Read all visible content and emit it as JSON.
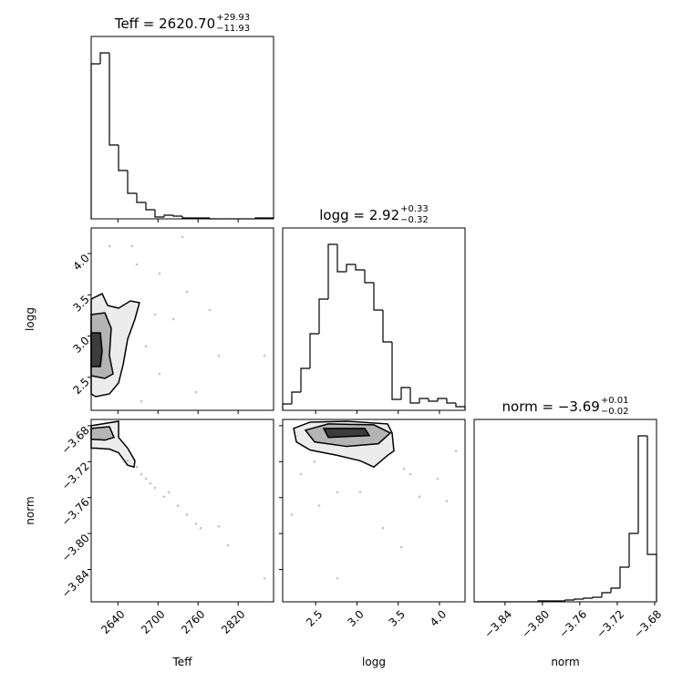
{
  "chart_data": [
    {
      "type": "histogram",
      "title": "Teff = 2620.70",
      "title_upper": "+29.93",
      "title_lower": "−11.93",
      "color": "#000000",
      "bins": [
        2600,
        2613.65,
        2627.3,
        2640.95,
        2654.6,
        2668.25,
        2681.9,
        2695.55,
        2709.2,
        2722.85,
        2736.5,
        2750.15,
        2763.8,
        2777.45,
        2791.1,
        2804.75,
        2818.4,
        2832.05,
        2845.7,
        2859.35,
        2873
      ],
      "counts": [
        170,
        182,
        81,
        53,
        28,
        18,
        10,
        2,
        4,
        3,
        1,
        1,
        1,
        0,
        0,
        0,
        0,
        0,
        1,
        1
      ],
      "xlim": [
        2600,
        2873
      ],
      "ylim": [
        0,
        200
      ]
    },
    {
      "type": "scatter",
      "color": "#999999",
      "ylabel": "logg",
      "x": [
        2627.3,
        2668.3,
        2702.4,
        2736.5,
        2722.9,
        2702.4,
        2675.1,
        2777.5,
        2791.1,
        2681.9,
        2757,
        2859.4,
        2661.4,
        2743.3,
        2695.6
      ],
      "y": [
        4.089,
        3.868,
        3.758,
        4.2,
        3.205,
        2.542,
        2.21,
        3.316,
        2.763,
        2.874,
        2.321,
        2.763,
        4.089,
        3.537,
        3.26
      ],
      "contours": [
        {
          "x": [
            2600,
            2616.4,
            2624.6,
            2641,
            2658.7,
            2672.3,
            2665.5,
            2654.6,
            2647.8,
            2641,
            2627.3,
            2606.8,
            2600
          ],
          "y": [
            3.448,
            3.514,
            3.371,
            3.338,
            3.426,
            3.404,
            3.205,
            2.962,
            2.653,
            2.432,
            2.299,
            2.266,
            2.299
          ]
        },
        {
          "x": [
            2600,
            2620.5,
            2630,
            2627.3,
            2632.8,
            2620.5,
            2600
          ],
          "y": [
            3.26,
            3.282,
            3.095,
            2.763,
            2.542,
            2.487,
            2.52
          ]
        },
        {
          "x": [
            2600,
            2613.65,
            2616.4,
            2613.65,
            2600
          ],
          "y": [
            3.039,
            3.039,
            2.818,
            2.63,
            2.63
          ]
        }
      ],
      "xlim": [
        2600,
        2873
      ],
      "ylim": [
        2.1,
        4.31
      ],
      "yticks": [
        2.5,
        {
          "value": 3,
          "label": "3.0"
        },
        3.5,
        {
          "value": 4,
          "label": "4.0"
        }
      ]
    },
    {
      "type": "histogram",
      "title": "logg = 2.92",
      "title_upper": "+0.33",
      "title_lower": "−0.32",
      "color": "#000000",
      "bins": [
        2.1,
        2.2105,
        2.321,
        2.4315,
        2.542,
        2.6525,
        2.763,
        2.8735,
        2.984,
        3.0945,
        3.205,
        3.3155,
        3.426,
        3.5365,
        3.647,
        3.7575,
        3.868,
        3.9785,
        4.089,
        4.1995,
        4.31
      ],
      "counts": [
        7,
        20,
        46,
        84,
        122,
        182,
        152,
        160,
        154,
        140,
        110,
        75,
        12,
        25,
        8,
        13,
        10,
        13,
        8,
        4
      ],
      "xlim": [
        2.1,
        4.31
      ],
      "ylim": [
        0,
        200
      ]
    },
    {
      "type": "scatter",
      "color": "#999999",
      "xlabel": "Teff",
      "ylabel": "norm",
      "x": [
        2668.3,
        2681.9,
        2695.6,
        2709.2,
        2729.7,
        2743.3,
        2757,
        2763.8,
        2791.1,
        2804.8,
        2859.4,
        2654.6,
        2675.1,
        2716,
        2688.7
      ],
      "y": [
        -3.726,
        -3.739,
        -3.749,
        -3.759,
        -3.769,
        -3.779,
        -3.789,
        -3.794,
        -3.792,
        -3.813,
        -3.85,
        -3.719,
        -3.734,
        -3.754,
        -3.744
      ],
      "contours": [
        {
          "x": [
            2600,
            2641,
            2641,
            2654.6,
            2665.5,
            2664.2,
            2654.6,
            2641,
            2627.3,
            2606.8,
            2600
          ],
          "y": [
            -3.68,
            -3.675,
            -3.693,
            -3.705,
            -3.719,
            -3.726,
            -3.724,
            -3.71,
            -3.706,
            -3.705,
            -3.705
          ]
        },
        {
          "x": [
            2600,
            2627.3,
            2634.1,
            2620.5,
            2600
          ],
          "y": [
            -3.683,
            -3.681,
            -3.693,
            -3.696,
            -3.695
          ]
        }
      ],
      "xlim": [
        2600,
        2873
      ],
      "ylim": [
        -3.876,
        -3.673
      ],
      "xticks": [
        2640,
        2700,
        2760,
        2820
      ],
      "yticks": [
        {
          "value": -3.84,
          "label": "−3.84"
        },
        {
          "value": -3.8,
          "label": "−3.80"
        },
        {
          "value": -3.76,
          "label": "−3.76"
        },
        {
          "value": -3.72,
          "label": "−3.72"
        },
        {
          "value": -3.68,
          "label": "−3.68"
        }
      ]
    },
    {
      "type": "scatter",
      "color": "#999999",
      "xlabel": "logg",
      "x": [
        2.487,
        3.57,
        2.21,
        2.542,
        2.763,
        3.647,
        3.979,
        4.2,
        3.758,
        3.316,
        3.039,
        2.763,
        3.537,
        4.089,
        2.321
      ],
      "y": [
        -3.72,
        -3.728,
        -3.779,
        -3.769,
        -3.754,
        -3.734,
        -3.739,
        -3.708,
        -3.759,
        -3.794,
        -3.754,
        -3.85,
        -3.815,
        -3.764,
        -3.734
      ],
      "contours": [
        {
          "x": [
            2.233,
            2.432,
            2.874,
            3.371,
            3.426,
            3.448,
            3.371,
            3.205,
            3.039,
            2.763,
            2.432,
            2.266
          ],
          "y": [
            -3.683,
            -3.676,
            -3.675,
            -3.678,
            -3.688,
            -3.708,
            -3.713,
            -3.726,
            -3.719,
            -3.713,
            -3.707,
            -3.698
          ]
        },
        {
          "x": [
            2.376,
            2.653,
            3.205,
            3.404,
            3.26,
            2.874,
            2.487
          ],
          "y": [
            -3.685,
            -3.678,
            -3.679,
            -3.688,
            -3.7,
            -3.703,
            -3.698
          ]
        },
        {
          "x": [
            2.597,
            3.095,
            3.15,
            2.653
          ],
          "y": [
            -3.683,
            -3.683,
            -3.691,
            -3.693
          ]
        }
      ],
      "xlim": [
        2.1,
        4.31
      ],
      "ylim": [
        -3.876,
        -3.673
      ],
      "xticks": [
        2.5,
        {
          "value": 3,
          "label": "3.0"
        },
        3.5,
        {
          "value": 4,
          "label": "4.0"
        }
      ]
    },
    {
      "type": "histogram",
      "title": "norm = −3.69",
      "title_upper": "+0.01",
      "title_lower": "−0.02",
      "color": "#000000",
      "xlabel": "norm",
      "bins": [
        -3.873,
        -3.86325,
        -3.8535,
        -3.84375,
        -3.834,
        -3.82425,
        -3.8145,
        -3.80475,
        -3.795,
        -3.78525,
        -3.7755,
        -3.76575,
        -3.756,
        -3.74625,
        -3.7365,
        -3.72675,
        -3.717,
        -3.70725,
        -3.6975,
        -3.68775,
        -3.678
      ],
      "counts": [
        0,
        0,
        0,
        0,
        0,
        0,
        0,
        1,
        1,
        1,
        2,
        3,
        4,
        5,
        10,
        15,
        38,
        75,
        182,
        52
      ],
      "xlim": [
        -3.873,
        -3.678
      ],
      "ylim": [
        0,
        200
      ],
      "xticks": [
        {
          "value": -3.84,
          "label": "−3.84"
        },
        {
          "value": -3.8,
          "label": "−3.80"
        },
        {
          "value": -3.76,
          "label": "−3.76"
        },
        {
          "value": -3.72,
          "label": "−3.72"
        },
        {
          "value": -3.68,
          "label": "−3.68"
        }
      ]
    }
  ]
}
